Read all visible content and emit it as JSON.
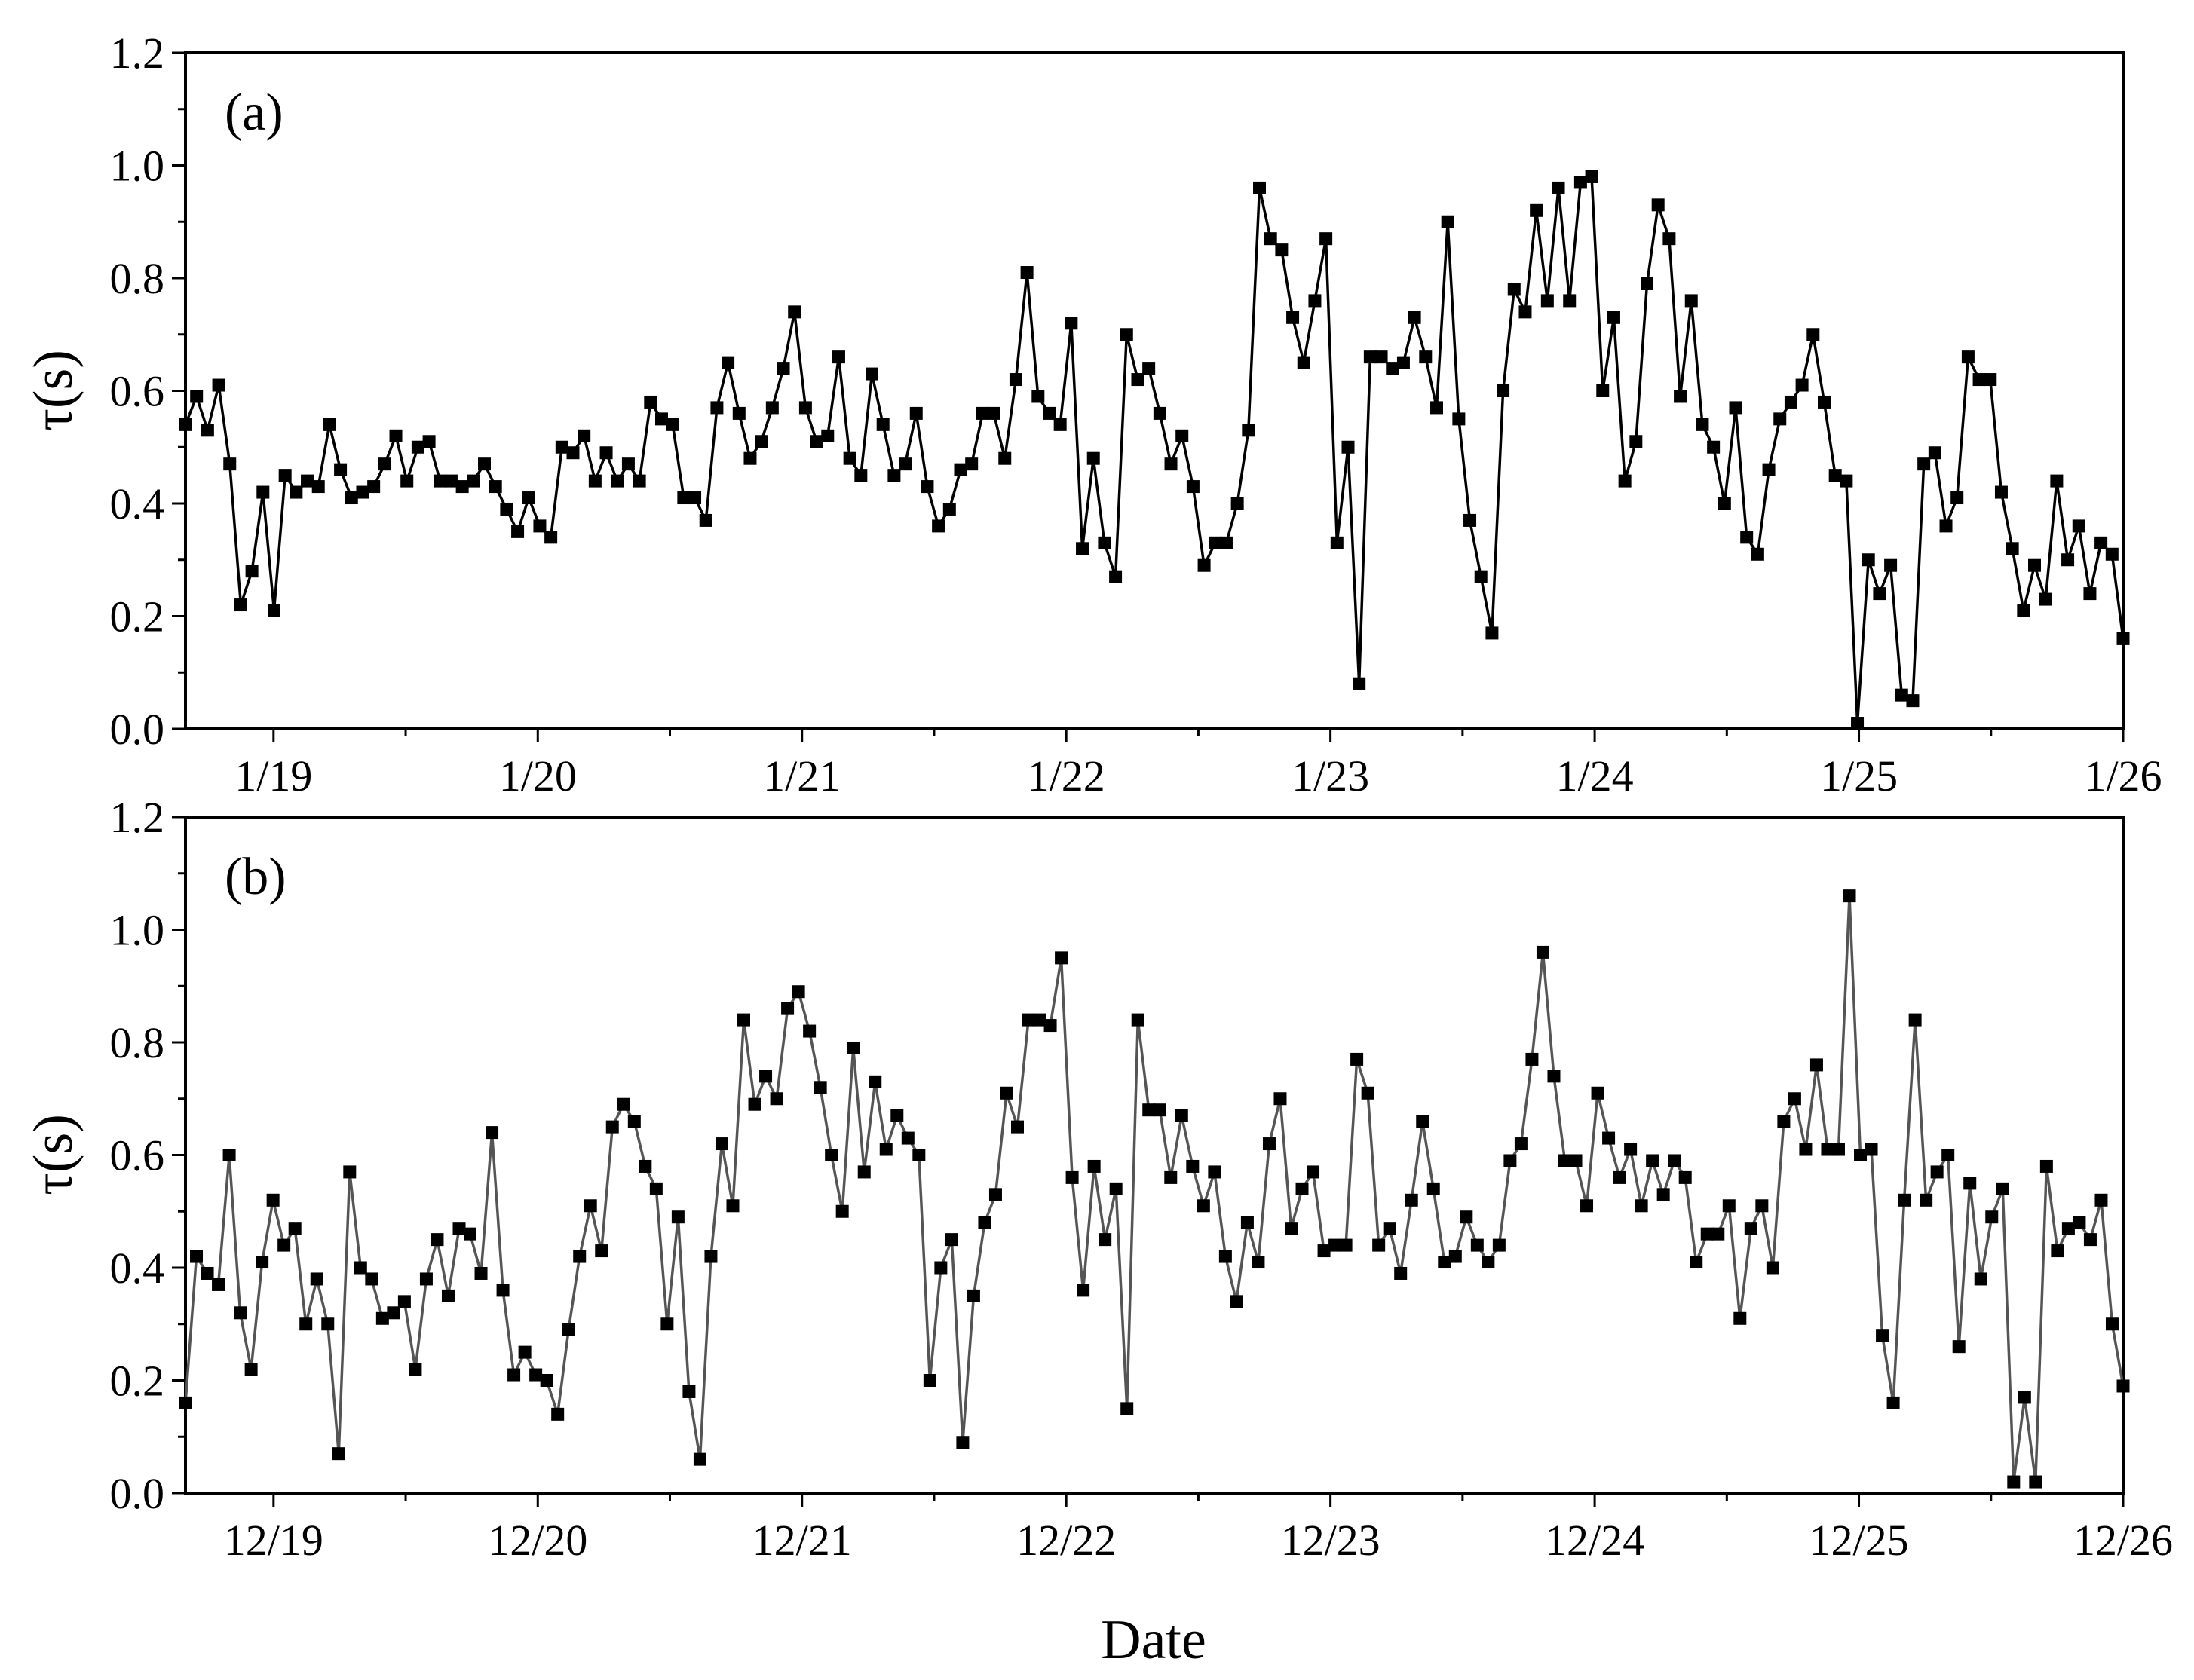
{
  "figure": {
    "xlabel": "Date",
    "panels": [
      {
        "label": "(a)",
        "ylabel": "τ(s)",
        "yticks": [
          "0.0",
          "0.2",
          "0.4",
          "0.6",
          "0.8",
          "1.0",
          "1.2"
        ],
        "xticks": [
          "1/19",
          "1/20",
          "1/21",
          "1/22",
          "1/23",
          "1/24",
          "1/25",
          "1/26"
        ]
      },
      {
        "label": "(b)",
        "ylabel": "τ(s)",
        "yticks": [
          "0.0",
          "0.2",
          "0.4",
          "0.6",
          "0.8",
          "1.0",
          "1.2"
        ],
        "xticks": [
          "12/19",
          "12/20",
          "12/21",
          "12/22",
          "12/23",
          "12/24",
          "12/25",
          "12/26"
        ]
      }
    ]
  },
  "chart_data": [
    {
      "type": "line",
      "label": "(a)",
      "xlabel": "",
      "ylabel": "τ(s)",
      "ylim": [
        0,
        1.2
      ],
      "xlim": [
        "1/18 16:00",
        "1/26 00:00"
      ],
      "grid": false,
      "marker": "square",
      "color": "#000000",
      "x_tick_labels": [
        "1/19",
        "1/20",
        "1/21",
        "1/22",
        "1/23",
        "1/24",
        "1/25",
        "1/26"
      ],
      "x_start": "1/18 16:00",
      "x_interval_hours": 1,
      "y": [
        0.54,
        0.59,
        0.53,
        0.61,
        0.47,
        0.22,
        0.28,
        0.42,
        0.21,
        0.45,
        0.42,
        0.44,
        0.43,
        0.54,
        0.46,
        0.41,
        0.42,
        0.43,
        0.47,
        0.52,
        0.44,
        0.5,
        0.51,
        0.44,
        0.44,
        0.43,
        0.44,
        0.47,
        0.43,
        0.39,
        0.35,
        0.41,
        0.36,
        0.34,
        0.5,
        0.49,
        0.52,
        0.44,
        0.49,
        0.44,
        0.47,
        0.44,
        0.58,
        0.55,
        0.54,
        0.41,
        0.41,
        0.37,
        0.57,
        0.65,
        0.56,
        0.48,
        0.51,
        0.57,
        0.64,
        0.74,
        0.57,
        0.51,
        0.52,
        0.66,
        0.48,
        0.45,
        0.63,
        0.54,
        0.45,
        0.47,
        0.56,
        0.43,
        0.36,
        0.39,
        0.46,
        0.47,
        0.56,
        0.56,
        0.48,
        0.62,
        0.81,
        0.59,
        0.56,
        0.54,
        0.72,
        0.32,
        0.48,
        0.33,
        0.27,
        0.7,
        0.62,
        0.64,
        0.56,
        0.47,
        0.52,
        0.43,
        0.29,
        0.33,
        0.33,
        0.4,
        0.53,
        0.96,
        0.87,
        0.85,
        0.73,
        0.65,
        0.76,
        0.87,
        0.33,
        0.5,
        0.08,
        0.66,
        0.66,
        0.64,
        0.65,
        0.73,
        0.66,
        0.57,
        0.9,
        0.55,
        0.37,
        0.27,
        0.17,
        0.6,
        0.78,
        0.74,
        0.92,
        0.76,
        0.96,
        0.76,
        0.97,
        0.98,
        0.6,
        0.73,
        0.44,
        0.51,
        0.79,
        0.93,
        0.87,
        0.59,
        0.76,
        0.54,
        0.5,
        0.4,
        0.57,
        0.34,
        0.31,
        0.46,
        0.55,
        0.58,
        0.61,
        0.7,
        0.58,
        0.45,
        0.44,
        0.01,
        0.3,
        0.24,
        0.29,
        0.06,
        0.05,
        0.47,
        0.49,
        0.36,
        0.41,
        0.66,
        0.62,
        0.62,
        0.42,
        0.32,
        0.21,
        0.29,
        0.23,
        0.44,
        0.3,
        0.36,
        0.24,
        0.33,
        0.31,
        0.16
      ]
    },
    {
      "type": "line",
      "label": "(b)",
      "xlabel": "Date",
      "ylabel": "τ(s)",
      "ylim": [
        0,
        1.2
      ],
      "xlim": [
        "12/18 16:00",
        "12/26 00:00"
      ],
      "grid": false,
      "marker": "square",
      "color": "#555555",
      "x_tick_labels": [
        "12/19",
        "12/20",
        "12/21",
        "12/22",
        "12/23",
        "12/24",
        "12/25",
        "12/26"
      ],
      "x_start": "12/18 16:00",
      "x_interval_hours": 1,
      "y": [
        0.16,
        0.42,
        0.39,
        0.37,
        0.6,
        0.32,
        0.22,
        0.41,
        0.52,
        0.44,
        0.47,
        0.3,
        0.38,
        0.3,
        0.07,
        0.57,
        0.4,
        0.38,
        0.31,
        0.32,
        0.34,
        0.22,
        0.38,
        0.45,
        0.35,
        0.47,
        0.46,
        0.39,
        0.64,
        0.36,
        0.21,
        0.25,
        0.21,
        0.2,
        0.14,
        0.29,
        0.42,
        0.51,
        0.43,
        0.65,
        0.69,
        0.66,
        0.58,
        0.54,
        0.3,
        0.49,
        0.18,
        0.06,
        0.42,
        0.62,
        0.51,
        0.84,
        0.69,
        0.74,
        0.7,
        0.86,
        0.89,
        0.82,
        0.72,
        0.6,
        0.5,
        0.79,
        0.57,
        0.73,
        0.61,
        0.67,
        0.63,
        0.6,
        0.2,
        0.4,
        0.45,
        0.09,
        0.35,
        0.48,
        0.53,
        0.71,
        0.65,
        0.84,
        0.84,
        0.83,
        0.95,
        0.56,
        0.36,
        0.58,
        0.45,
        0.54,
        0.15,
        0.84,
        0.68,
        0.68,
        0.56,
        0.67,
        0.58,
        0.51,
        0.57,
        0.42,
        0.34,
        0.48,
        0.41,
        0.62,
        0.7,
        0.47,
        0.54,
        0.57,
        0.43,
        0.44,
        0.44,
        0.77,
        0.71,
        0.44,
        0.47,
        0.39,
        0.52,
        0.66,
        0.54,
        0.41,
        0.42,
        0.49,
        0.44,
        0.41,
        0.44,
        0.59,
        0.62,
        0.77,
        0.96,
        0.74,
        0.59,
        0.59,
        0.51,
        0.71,
        0.63,
        0.56,
        0.61,
        0.51,
        0.59,
        0.53,
        0.59,
        0.56,
        0.41,
        0.46,
        0.46,
        0.51,
        0.31,
        0.47,
        0.51,
        0.4,
        0.66,
        0.7,
        0.61,
        0.76,
        0.61,
        0.61,
        1.06,
        0.6,
        0.61,
        0.28,
        0.16,
        0.52,
        0.84,
        0.52,
        0.57,
        0.6,
        0.26,
        0.55,
        0.38,
        0.49,
        0.54,
        0.02,
        0.17,
        0.02,
        0.58,
        0.43,
        0.47,
        0.48,
        0.45,
        0.52,
        0.3,
        0.19
      ]
    }
  ]
}
